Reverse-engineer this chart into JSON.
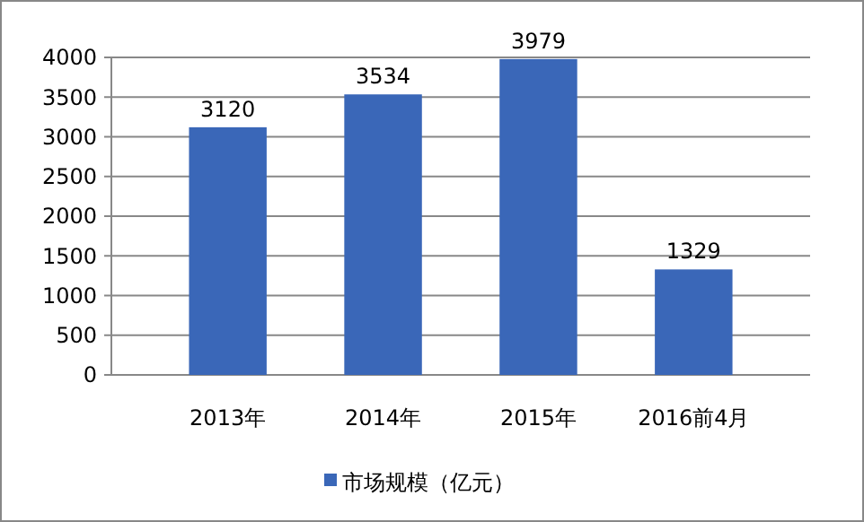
{
  "chart_data": {
    "type": "bar",
    "categories": [
      "2013年",
      "2014年",
      "2015年",
      "2016前4月"
    ],
    "series": [
      {
        "name": "市场规模（亿元）",
        "color": "#3a67b8",
        "values": [
          3120,
          3534,
          3979,
          1329
        ]
      }
    ],
    "ylim": [
      0,
      4000
    ],
    "yticks": [
      0,
      500,
      1000,
      1500,
      2000,
      2500,
      3000,
      3500,
      4000
    ],
    "grid": "y",
    "legend": "bottom",
    "data_labels": true
  }
}
